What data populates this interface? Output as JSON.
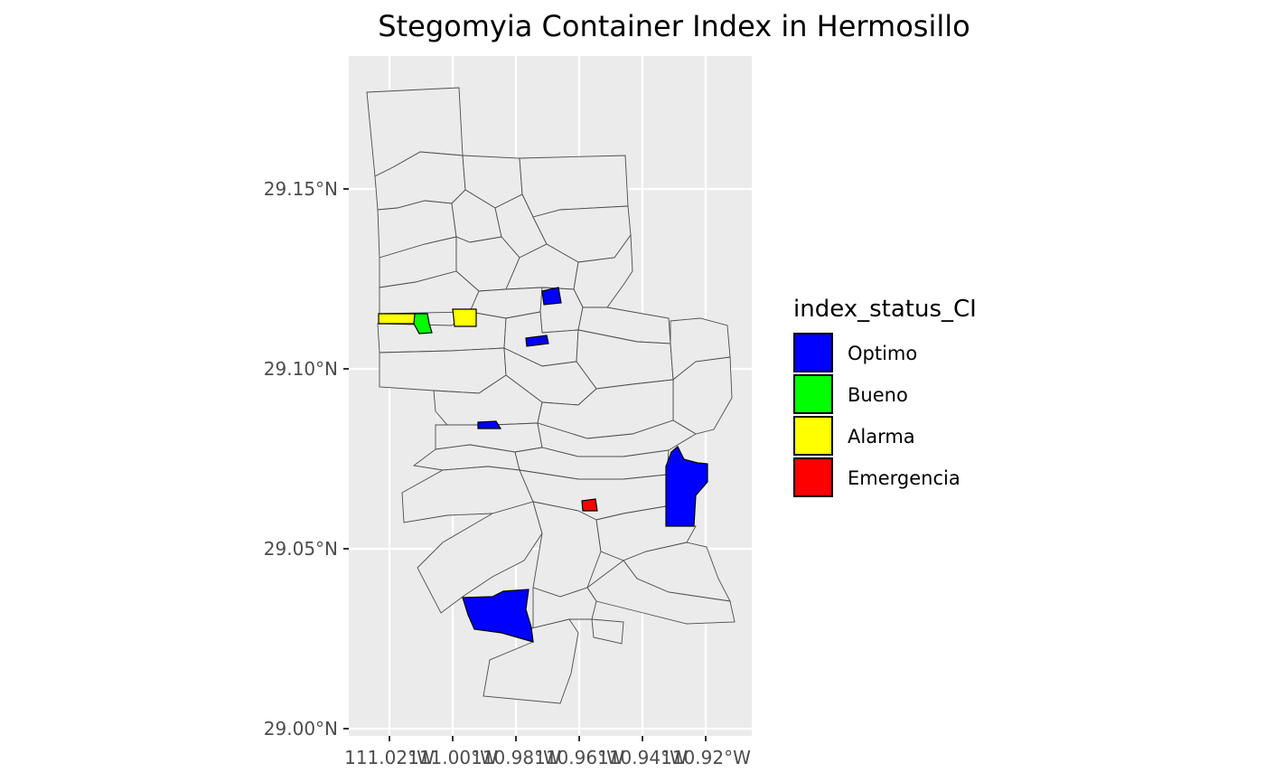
{
  "title": "Stegomyia Container Index in Hermosillo",
  "axes": {
    "x_ticks": [
      "111.02°W",
      "111.00°W",
      "110.98°W",
      "110.96°W",
      "110.94°W",
      "110.92°W"
    ],
    "y_ticks": [
      "29.15°N",
      "29.10°N",
      "29.05°N",
      "29.00°N"
    ],
    "x_range_lon": [
      -111.033,
      -110.906
    ],
    "y_range_lat": [
      28.998,
      29.187
    ]
  },
  "legend": {
    "title": "index_status_CI",
    "placement": "right",
    "items": [
      {
        "label": "Optimo",
        "color": "#0000ff"
      },
      {
        "label": "Bueno",
        "color": "#00ff00"
      },
      {
        "label": "Alarma",
        "color": "#ffff00"
      },
      {
        "label": "Emergencia",
        "color": "#ff0000"
      }
    ]
  },
  "colors": {
    "panel_background": "#ebebeb",
    "gridline": "#ffffff",
    "block_border": "#4d4d4d",
    "unclassified_fill": "#ebebeb"
  }
}
